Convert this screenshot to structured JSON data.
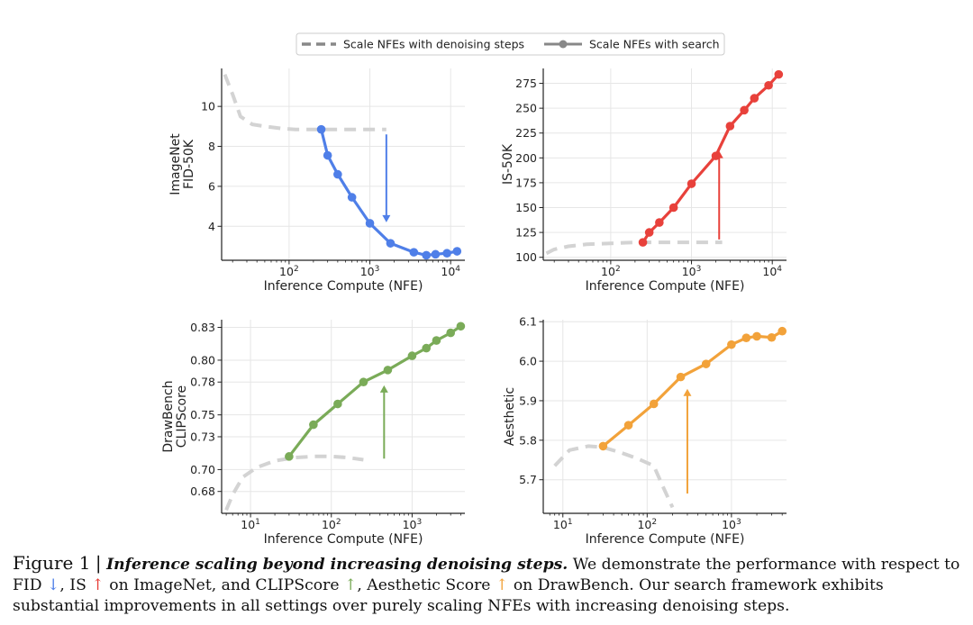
{
  "legend": {
    "dashed_label": "Scale NFEs with denoising steps",
    "search_label": "Scale NFEs with search"
  },
  "chart_data": [
    {
      "type": "line",
      "id": "fid",
      "xscale": "log",
      "xlim": [
        15,
        15000
      ],
      "ylim": [
        2.3,
        11.9
      ],
      "xticks": [
        {
          "v": 100,
          "base": "10",
          "exp": "2"
        },
        {
          "v": 1000,
          "base": "10",
          "exp": "3"
        },
        {
          "v": 10000,
          "base": "10",
          "exp": "4"
        }
      ],
      "yticks": [
        4,
        6,
        8,
        10
      ],
      "ylabel": "FID-50K",
      "ylabel_group": "ImageNet",
      "xlabel": "Inference Compute (NFE)",
      "grid": true,
      "arrow": {
        "x": 1600,
        "y_from": 8.6,
        "y_to": 4.2,
        "direction": "down"
      },
      "series": [
        {
          "name": "Scale NFEs with denoising steps",
          "style": "dashed",
          "color": "#d3d3d3",
          "x": [
            16,
            20,
            25,
            35,
            50,
            80,
            120,
            200,
            400,
            800,
            1600
          ],
          "y": [
            11.6,
            10.6,
            9.5,
            9.1,
            9.0,
            8.9,
            8.85,
            8.85,
            8.85,
            8.85,
            8.85
          ]
        },
        {
          "name": "Scale NFEs with search",
          "style": "solid",
          "color": "#4f7fe8",
          "x": [
            250,
            300,
            400,
            600,
            1000,
            1800,
            3500,
            5000,
            6500,
            9000,
            12000
          ],
          "y": [
            8.85,
            7.55,
            6.6,
            5.45,
            4.15,
            3.15,
            2.7,
            2.55,
            2.6,
            2.65,
            2.75
          ]
        }
      ]
    },
    {
      "type": "line",
      "id": "is",
      "xscale": "log",
      "xlim": [
        15,
        15000
      ],
      "ylim": [
        97,
        290
      ],
      "xticks": [
        {
          "v": 100,
          "base": "10",
          "exp": "2"
        },
        {
          "v": 1000,
          "base": "10",
          "exp": "3"
        },
        {
          "v": 10000,
          "base": "10",
          "exp": "4"
        }
      ],
      "yticks": [
        100,
        125,
        150,
        175,
        200,
        225,
        250,
        275
      ],
      "ylabel": "IS-50K",
      "ylabel_group": "",
      "xlabel": "Inference Compute (NFE)",
      "grid": true,
      "arrow": {
        "x": 2200,
        "y_from": 118,
        "y_to": 207,
        "direction": "up"
      },
      "series": [
        {
          "name": "Scale NFEs with denoising steps",
          "style": "dashed",
          "color": "#d3d3d3",
          "x": [
            16,
            20,
            30,
            50,
            100,
            200,
            400,
            800,
            1600,
            2400
          ],
          "y": [
            104,
            108,
            111,
            113,
            114,
            115,
            115,
            115,
            115,
            115
          ]
        },
        {
          "name": "Scale NFEs with search",
          "style": "solid",
          "color": "#e8413b",
          "x": [
            250,
            300,
            400,
            600,
            1000,
            2000,
            3000,
            4500,
            6000,
            9000,
            12000
          ],
          "y": [
            115,
            125,
            135,
            150,
            174,
            202,
            232,
            248,
            260,
            273,
            284
          ]
        }
      ]
    },
    {
      "type": "line",
      "id": "clip",
      "xscale": "log",
      "xlim": [
        4.5,
        4500
      ],
      "ylim": [
        0.66,
        0.837
      ],
      "xticks": [
        {
          "v": 10,
          "base": "10",
          "exp": "1"
        },
        {
          "v": 100,
          "base": "10",
          "exp": "2"
        },
        {
          "v": 1000,
          "base": "10",
          "exp": "3"
        }
      ],
      "yticks": [
        0.68,
        0.7,
        0.73,
        0.75,
        0.78,
        0.8,
        0.83
      ],
      "ytick_labels": [
        "0.68",
        "0.70",
        "0.73",
        "0.75",
        "0.78",
        "0.80",
        "0.83"
      ],
      "ylabel": "CLIPScore",
      "ylabel_group": "DrawBench",
      "xlabel": "Inference Compute (NFE)",
      "grid": true,
      "arrow": {
        "x": 450,
        "y_from": 0.71,
        "y_to": 0.777,
        "direction": "up"
      },
      "series": [
        {
          "name": "Scale NFEs with denoising steps",
          "style": "dashed",
          "color": "#d3d3d3",
          "x": [
            5,
            6,
            8,
            12,
            20,
            35,
            60,
            100,
            160,
            250
          ],
          "y": [
            0.663,
            0.677,
            0.693,
            0.702,
            0.708,
            0.711,
            0.712,
            0.712,
            0.711,
            0.709
          ]
        },
        {
          "name": "Scale NFEs with search",
          "style": "solid",
          "color": "#7aab58",
          "x": [
            30,
            60,
            120,
            250,
            500,
            1000,
            1500,
            2000,
            3000,
            4000
          ],
          "y": [
            0.712,
            0.741,
            0.76,
            0.78,
            0.791,
            0.804,
            0.811,
            0.818,
            0.825,
            0.831
          ]
        }
      ]
    },
    {
      "type": "line",
      "id": "aesthetic",
      "xscale": "log",
      "xlim": [
        6,
        4500
      ],
      "ylim": [
        5.615,
        6.105
      ],
      "xticks": [
        {
          "v": 10,
          "base": "10",
          "exp": "1"
        },
        {
          "v": 100,
          "base": "10",
          "exp": "2"
        },
        {
          "v": 1000,
          "base": "10",
          "exp": "3"
        }
      ],
      "yticks": [
        5.7,
        5.8,
        5.9,
        6.0,
        6.1
      ],
      "ytick_labels": [
        "5.7",
        "5.8",
        "5.9",
        "6.0",
        "6.1"
      ],
      "ylabel": "Aesthetic",
      "ylabel_group": "",
      "xlabel": "Inference Compute (NFE)",
      "grid": true,
      "arrow": {
        "x": 300,
        "y_from": 5.665,
        "y_to": 5.93,
        "direction": "up"
      },
      "series": [
        {
          "name": "Scale NFEs with denoising steps",
          "style": "dashed",
          "color": "#d3d3d3",
          "x": [
            8,
            12,
            20,
            30,
            50,
            80,
            120,
            160,
            200
          ],
          "y": [
            5.735,
            5.775,
            5.785,
            5.782,
            5.768,
            5.752,
            5.735,
            5.675,
            5.63
          ]
        },
        {
          "name": "Scale NFEs with search",
          "style": "solid",
          "color": "#f2a23a",
          "x": [
            30,
            60,
            120,
            250,
            500,
            1000,
            1500,
            2000,
            3000,
            4000
          ],
          "y": [
            5.785,
            5.838,
            5.892,
            5.96,
            5.993,
            6.042,
            6.059,
            6.063,
            6.06,
            6.076
          ]
        }
      ]
    }
  ],
  "caption": {
    "label": "Figure 1",
    "separator": "|",
    "title": "Inference scaling beyond increasing denoising steps.",
    "part1": "We demonstrate the performance with respect to FID",
    "arrow_fid": "↓",
    "part2": ", IS",
    "arrow_is": "↑",
    "part3": "on ImageNet, and CLIPScore",
    "arrow_clip": "↑",
    "part4": ", Aesthetic Score",
    "arrow_aesthetic": "↑",
    "part5": "on DrawBench. Our search framework exhibits substantial improvements in all settings over purely scaling NFEs with increasing denoising steps."
  }
}
